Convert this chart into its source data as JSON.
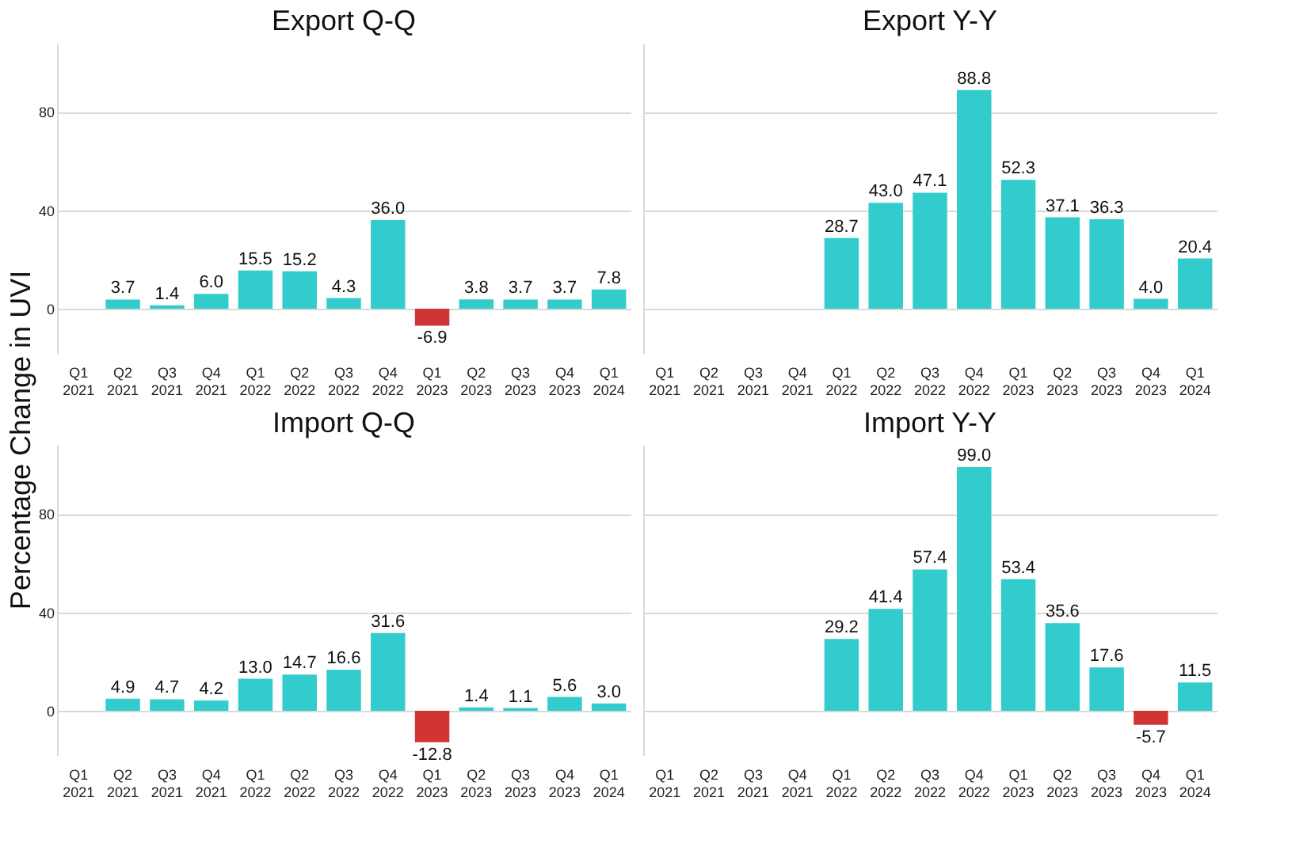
{
  "chart_data": [
    {
      "type": "bar",
      "title": "Export Q-Q",
      "ylabel": "Percentage Change in UVI",
      "categories": [
        "Q1 2021",
        "Q2 2021",
        "Q3 2021",
        "Q4 2021",
        "Q1 2022",
        "Q2 2022",
        "Q3 2022",
        "Q4 2022",
        "Q1 2023",
        "Q2 2023",
        "Q3 2023",
        "Q4 2023",
        "Q1 2024"
      ],
      "values": [
        null,
        3.7,
        1.4,
        6.0,
        15.5,
        15.2,
        4.3,
        36.0,
        -6.9,
        3.8,
        3.7,
        3.7,
        7.8
      ],
      "value_labels": [
        null,
        "3.7",
        "1.4",
        "6.0",
        "15.5",
        "15.2",
        "4.3",
        "36.0",
        "-6.9",
        "3.8",
        "3.7",
        "3.7",
        "7.8"
      ],
      "colors": [
        "#33cccc",
        "#33cccc",
        "#33cccc",
        "#33cccc",
        "#33cccc",
        "#33cccc",
        "#33cccc",
        "#33cccc",
        "#d03434",
        "#33cccc",
        "#33cccc",
        "#33cccc",
        "#33cccc"
      ],
      "ylim": [
        -18,
        108
      ],
      "yticks": [
        0,
        40,
        80
      ],
      "grid": "y"
    },
    {
      "type": "bar",
      "title": "Export Y-Y",
      "categories": [
        "Q1 2021",
        "Q2 2021",
        "Q3 2021",
        "Q4 2021",
        "Q1 2022",
        "Q2 2022",
        "Q3 2022",
        "Q4 2022",
        "Q1 2023",
        "Q2 2023",
        "Q3 2023",
        "Q4 2023",
        "Q1 2024"
      ],
      "values": [
        null,
        null,
        null,
        null,
        28.7,
        43.0,
        47.1,
        88.8,
        52.3,
        37.1,
        36.3,
        4.0,
        20.4
      ],
      "value_labels": [
        null,
        null,
        null,
        null,
        "28.7",
        "43.0",
        "47.1",
        "88.8",
        "52.3",
        "37.1",
        "36.3",
        "4.0",
        "20.4"
      ],
      "colors": [
        "#33cccc",
        "#33cccc",
        "#33cccc",
        "#33cccc",
        "#33cccc",
        "#33cccc",
        "#33cccc",
        "#33cccc",
        "#33cccc",
        "#33cccc",
        "#33cccc",
        "#33cccc",
        "#33cccc"
      ],
      "ylim": [
        -18,
        108
      ],
      "yticks": [
        0,
        40,
        80
      ],
      "grid": "y",
      "tick_labels": "x"
    },
    {
      "type": "bar",
      "title": "Import Q-Q",
      "categories": [
        "Q1 2021",
        "Q2 2021",
        "Q3 2021",
        "Q4 2021",
        "Q1 2022",
        "Q2 2022",
        "Q3 2022",
        "Q4 2022",
        "Q1 2023",
        "Q2 2023",
        "Q3 2023",
        "Q4 2023",
        "Q1 2024"
      ],
      "values": [
        null,
        4.9,
        4.7,
        4.2,
        13.0,
        14.7,
        16.6,
        31.6,
        -12.8,
        1.4,
        1.1,
        5.6,
        3.0
      ],
      "value_labels": [
        null,
        "4.9",
        "4.7",
        "4.2",
        "13.0",
        "14.7",
        "16.6",
        "31.6",
        "-12.8",
        "1.4",
        "1.1",
        "5.6",
        "3.0"
      ],
      "colors": [
        "#33cccc",
        "#33cccc",
        "#33cccc",
        "#33cccc",
        "#33cccc",
        "#33cccc",
        "#33cccc",
        "#33cccc",
        "#d03434",
        "#33cccc",
        "#33cccc",
        "#33cccc",
        "#33cccc"
      ],
      "ylim": [
        -18,
        108
      ],
      "yticks": [
        0,
        40,
        80
      ],
      "grid": "y"
    },
    {
      "type": "bar",
      "title": "Import Y-Y",
      "categories": [
        "Q1 2021",
        "Q2 2021",
        "Q3 2021",
        "Q4 2021",
        "Q1 2022",
        "Q2 2022",
        "Q3 2022",
        "Q4 2022",
        "Q1 2023",
        "Q2 2023",
        "Q3 2023",
        "Q4 2023",
        "Q1 2024"
      ],
      "values": [
        null,
        null,
        null,
        null,
        29.2,
        41.4,
        57.4,
        99.0,
        53.4,
        35.6,
        17.6,
        -5.7,
        11.5
      ],
      "value_labels": [
        null,
        null,
        null,
        null,
        "29.2",
        "41.4",
        "57.4",
        "99.0",
        "53.4",
        "35.6",
        "17.6",
        "-5.7",
        "11.5"
      ],
      "colors": [
        "#33cccc",
        "#33cccc",
        "#33cccc",
        "#33cccc",
        "#33cccc",
        "#33cccc",
        "#33cccc",
        "#33cccc",
        "#33cccc",
        "#33cccc",
        "#33cccc",
        "#d03434",
        "#33cccc"
      ],
      "ylim": [
        -18,
        108
      ],
      "yticks": [
        0,
        40,
        80
      ],
      "grid": "y",
      "tick_labels": "x"
    }
  ]
}
